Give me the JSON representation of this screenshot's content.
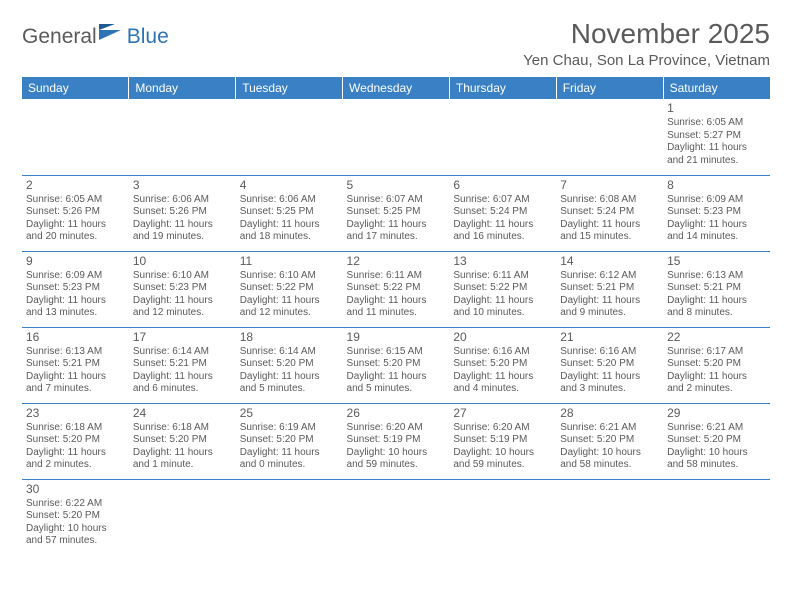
{
  "logo": {
    "general": "General",
    "blue": "Blue"
  },
  "title": "November 2025",
  "location": "Yen Chau, Son La Province, Vietnam",
  "headers": [
    "Sunday",
    "Monday",
    "Tuesday",
    "Wednesday",
    "Thursday",
    "Friday",
    "Saturday"
  ],
  "header_bg": "#3a80c4",
  "header_fg": "#ffffff",
  "text_color": "#5a5a5a",
  "weeks": [
    [
      null,
      null,
      null,
      null,
      null,
      null,
      {
        "n": "1",
        "r": "Sunrise: 6:05 AM",
        "s": "Sunset: 5:27 PM",
        "d1": "Daylight: 11 hours",
        "d2": "and 21 minutes."
      }
    ],
    [
      {
        "n": "2",
        "r": "Sunrise: 6:05 AM",
        "s": "Sunset: 5:26 PM",
        "d1": "Daylight: 11 hours",
        "d2": "and 20 minutes."
      },
      {
        "n": "3",
        "r": "Sunrise: 6:06 AM",
        "s": "Sunset: 5:26 PM",
        "d1": "Daylight: 11 hours",
        "d2": "and 19 minutes."
      },
      {
        "n": "4",
        "r": "Sunrise: 6:06 AM",
        "s": "Sunset: 5:25 PM",
        "d1": "Daylight: 11 hours",
        "d2": "and 18 minutes."
      },
      {
        "n": "5",
        "r": "Sunrise: 6:07 AM",
        "s": "Sunset: 5:25 PM",
        "d1": "Daylight: 11 hours",
        "d2": "and 17 minutes."
      },
      {
        "n": "6",
        "r": "Sunrise: 6:07 AM",
        "s": "Sunset: 5:24 PM",
        "d1": "Daylight: 11 hours",
        "d2": "and 16 minutes."
      },
      {
        "n": "7",
        "r": "Sunrise: 6:08 AM",
        "s": "Sunset: 5:24 PM",
        "d1": "Daylight: 11 hours",
        "d2": "and 15 minutes."
      },
      {
        "n": "8",
        "r": "Sunrise: 6:09 AM",
        "s": "Sunset: 5:23 PM",
        "d1": "Daylight: 11 hours",
        "d2": "and 14 minutes."
      }
    ],
    [
      {
        "n": "9",
        "r": "Sunrise: 6:09 AM",
        "s": "Sunset: 5:23 PM",
        "d1": "Daylight: 11 hours",
        "d2": "and 13 minutes."
      },
      {
        "n": "10",
        "r": "Sunrise: 6:10 AM",
        "s": "Sunset: 5:23 PM",
        "d1": "Daylight: 11 hours",
        "d2": "and 12 minutes."
      },
      {
        "n": "11",
        "r": "Sunrise: 6:10 AM",
        "s": "Sunset: 5:22 PM",
        "d1": "Daylight: 11 hours",
        "d2": "and 12 minutes."
      },
      {
        "n": "12",
        "r": "Sunrise: 6:11 AM",
        "s": "Sunset: 5:22 PM",
        "d1": "Daylight: 11 hours",
        "d2": "and 11 minutes."
      },
      {
        "n": "13",
        "r": "Sunrise: 6:11 AM",
        "s": "Sunset: 5:22 PM",
        "d1": "Daylight: 11 hours",
        "d2": "and 10 minutes."
      },
      {
        "n": "14",
        "r": "Sunrise: 6:12 AM",
        "s": "Sunset: 5:21 PM",
        "d1": "Daylight: 11 hours",
        "d2": "and 9 minutes."
      },
      {
        "n": "15",
        "r": "Sunrise: 6:13 AM",
        "s": "Sunset: 5:21 PM",
        "d1": "Daylight: 11 hours",
        "d2": "and 8 minutes."
      }
    ],
    [
      {
        "n": "16",
        "r": "Sunrise: 6:13 AM",
        "s": "Sunset: 5:21 PM",
        "d1": "Daylight: 11 hours",
        "d2": "and 7 minutes."
      },
      {
        "n": "17",
        "r": "Sunrise: 6:14 AM",
        "s": "Sunset: 5:21 PM",
        "d1": "Daylight: 11 hours",
        "d2": "and 6 minutes."
      },
      {
        "n": "18",
        "r": "Sunrise: 6:14 AM",
        "s": "Sunset: 5:20 PM",
        "d1": "Daylight: 11 hours",
        "d2": "and 5 minutes."
      },
      {
        "n": "19",
        "r": "Sunrise: 6:15 AM",
        "s": "Sunset: 5:20 PM",
        "d1": "Daylight: 11 hours",
        "d2": "and 5 minutes."
      },
      {
        "n": "20",
        "r": "Sunrise: 6:16 AM",
        "s": "Sunset: 5:20 PM",
        "d1": "Daylight: 11 hours",
        "d2": "and 4 minutes."
      },
      {
        "n": "21",
        "r": "Sunrise: 6:16 AM",
        "s": "Sunset: 5:20 PM",
        "d1": "Daylight: 11 hours",
        "d2": "and 3 minutes."
      },
      {
        "n": "22",
        "r": "Sunrise: 6:17 AM",
        "s": "Sunset: 5:20 PM",
        "d1": "Daylight: 11 hours",
        "d2": "and 2 minutes."
      }
    ],
    [
      {
        "n": "23",
        "r": "Sunrise: 6:18 AM",
        "s": "Sunset: 5:20 PM",
        "d1": "Daylight: 11 hours",
        "d2": "and 2 minutes."
      },
      {
        "n": "24",
        "r": "Sunrise: 6:18 AM",
        "s": "Sunset: 5:20 PM",
        "d1": "Daylight: 11 hours",
        "d2": "and 1 minute."
      },
      {
        "n": "25",
        "r": "Sunrise: 6:19 AM",
        "s": "Sunset: 5:20 PM",
        "d1": "Daylight: 11 hours",
        "d2": "and 0 minutes."
      },
      {
        "n": "26",
        "r": "Sunrise: 6:20 AM",
        "s": "Sunset: 5:19 PM",
        "d1": "Daylight: 10 hours",
        "d2": "and 59 minutes."
      },
      {
        "n": "27",
        "r": "Sunrise: 6:20 AM",
        "s": "Sunset: 5:19 PM",
        "d1": "Daylight: 10 hours",
        "d2": "and 59 minutes."
      },
      {
        "n": "28",
        "r": "Sunrise: 6:21 AM",
        "s": "Sunset: 5:20 PM",
        "d1": "Daylight: 10 hours",
        "d2": "and 58 minutes."
      },
      {
        "n": "29",
        "r": "Sunrise: 6:21 AM",
        "s": "Sunset: 5:20 PM",
        "d1": "Daylight: 10 hours",
        "d2": "and 58 minutes."
      }
    ],
    [
      {
        "n": "30",
        "r": "Sunrise: 6:22 AM",
        "s": "Sunset: 5:20 PM",
        "d1": "Daylight: 10 hours",
        "d2": "and 57 minutes."
      },
      null,
      null,
      null,
      null,
      null,
      null
    ]
  ]
}
